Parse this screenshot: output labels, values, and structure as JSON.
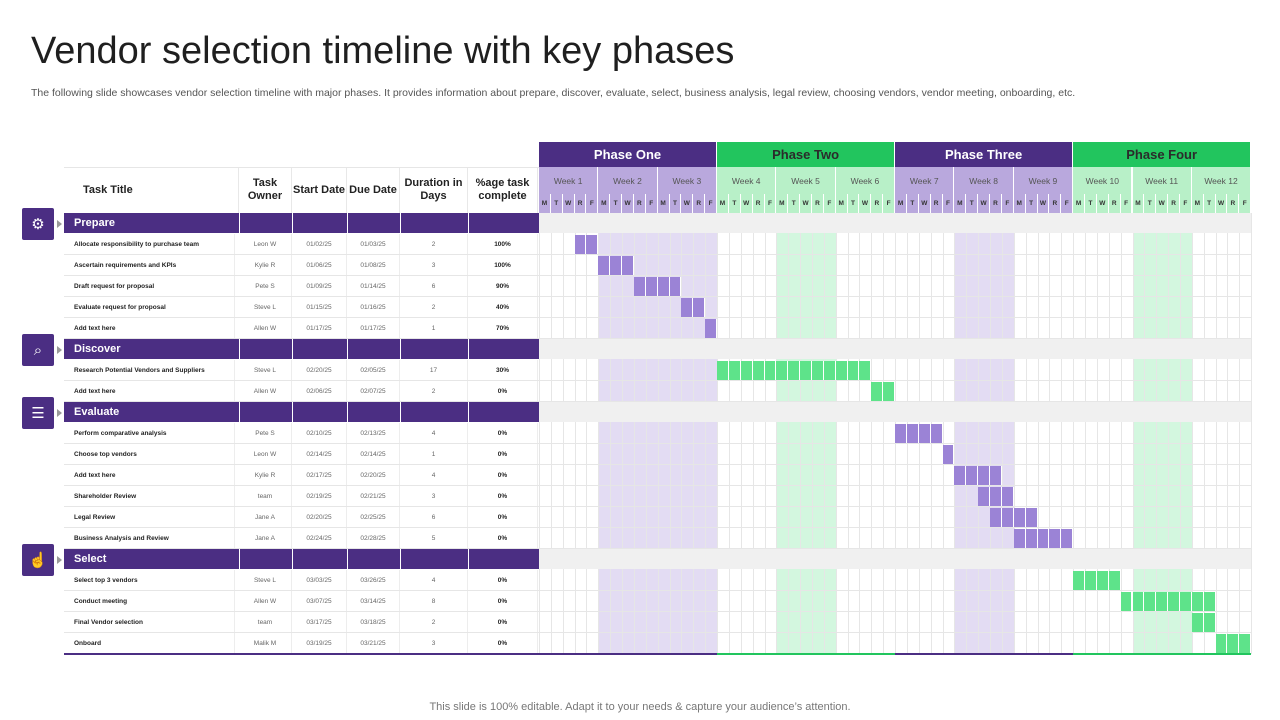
{
  "title": "Vendor selection timeline with key phases",
  "subtitle": "The following slide showcases vendor selection timeline with major phases. It provides information about prepare, discover, evaluate, select, business analysis, legal review, choosing vendors, vendor meeting, onboarding, etc.",
  "footer": "This slide is 100% editable. Adapt it to your needs & capture your audience’s attention.",
  "columns": {
    "task_title": "Task Title",
    "task_owner": "Task Owner",
    "start_date": "Start Date",
    "due_date": "Due Date",
    "duration": "Duration in Days",
    "complete": "%age task complete"
  },
  "phases": [
    {
      "label": "Phase One",
      "color": "#4b2e83",
      "text_color": "#ffffff",
      "week_bg": "#b9a8dd",
      "weeks": [
        "Week 1",
        "Week 2",
        "Week 3"
      ]
    },
    {
      "label": "Phase Two",
      "color": "#22c55e",
      "text_color": "#2b2b2b",
      "week_bg": "#b8f0c8",
      "weeks": [
        "Week 4",
        "Week 5",
        "Week 6"
      ]
    },
    {
      "label": "Phase Three",
      "color": "#4b2e83",
      "text_color": "#ffffff",
      "week_bg": "#b9a8dd",
      "weeks": [
        "Week 7",
        "Week 8",
        "Week 9"
      ]
    },
    {
      "label": "Phase Four",
      "color": "#22c55e",
      "text_color": "#2b2b2b",
      "week_bg": "#b8f0c8",
      "weeks": [
        "Week 10",
        "Week 11",
        "Week 12"
      ]
    }
  ],
  "days": [
    "M",
    "T",
    "W",
    "R",
    "F"
  ],
  "colors": {
    "purple": "#4b2e83",
    "bar_purple": "#9b83d6",
    "bar_green": "#5ee38a",
    "shade_purple": "#e3dcf3",
    "shade_green": "#d3f7df"
  },
  "sections": [
    {
      "label": "Prepare",
      "icon": "clipboard-gear-icon",
      "tasks": [
        {
          "task": "Allocate responsibility to purchase team",
          "owner": "Leon W",
          "start": "01/02/25",
          "due": "01/03/25",
          "duration": "2",
          "complete": "100%",
          "bar_start_day": 3,
          "bar_days": 2
        },
        {
          "task": "Ascertain requirements and KPIs",
          "owner": "Kylie R",
          "start": "01/06/25",
          "due": "01/08/25",
          "duration": "3",
          "complete": "100%",
          "bar_start_day": 5,
          "bar_days": 3
        },
        {
          "task": "Draft request for proposal",
          "owner": "Pete S",
          "start": "01/09/25",
          "due": "01/14/25",
          "duration": "6",
          "complete": "90%",
          "bar_start_day": 8,
          "bar_days": 4
        },
        {
          "task": "Evaluate request for proposal",
          "owner": "Steve L",
          "start": "01/15/25",
          "due": "01/16/25",
          "duration": "2",
          "complete": "40%",
          "bar_start_day": 12,
          "bar_days": 2
        },
        {
          "task": "Add text here",
          "owner": "Allen W",
          "start": "01/17/25",
          "due": "01/17/25",
          "duration": "1",
          "complete": "70%",
          "bar_start_day": 14,
          "bar_days": 1
        }
      ]
    },
    {
      "label": "Discover",
      "icon": "document-search-icon",
      "tasks": [
        {
          "task": "Research Potential Vendors and Suppliers",
          "owner": "Steve L",
          "start": "02/20/25",
          "due": "02/05/25",
          "duration": "17",
          "complete": "30%",
          "bar_start_day": 15,
          "bar_days": 13
        },
        {
          "task": "Add text here",
          "owner": "Allen W",
          "start": "02/06/25",
          "due": "02/07/25",
          "duration": "2",
          "complete": "0%",
          "bar_start_day": 28,
          "bar_days": 2
        }
      ]
    },
    {
      "label": "Evaluate",
      "icon": "checklist-icon",
      "tasks": [
        {
          "task": "Perform comparative analysis",
          "owner": "Pete S",
          "start": "02/10/25",
          "due": "02/13/25",
          "duration": "4",
          "complete": "0%",
          "bar_start_day": 30,
          "bar_days": 4
        },
        {
          "task": "Choose top vendors",
          "owner": "Leon W",
          "start": "02/14/25",
          "due": "02/14/25",
          "duration": "1",
          "complete": "0%",
          "bar_start_day": 34,
          "bar_days": 1
        },
        {
          "task": "Add text here",
          "owner": "Kylie R",
          "start": "02/17/25",
          "due": "02/20/25",
          "duration": "4",
          "complete": "0%",
          "bar_start_day": 35,
          "bar_days": 4
        },
        {
          "task": "Shareholder  Review",
          "owner": "team",
          "start": "02/19/25",
          "due": "02/21/25",
          "duration": "3",
          "complete": "0%",
          "bar_start_day": 37,
          "bar_days": 3
        },
        {
          "task": "Legal Review",
          "owner": "Jane A",
          "start": "02/20/25",
          "due": "02/25/25",
          "duration": "6",
          "complete": "0%",
          "bar_start_day": 38,
          "bar_days": 4
        },
        {
          "task": "Business Analysis and Review",
          "owner": "Jane A",
          "start": "02/24/25",
          "due": "02/28/25",
          "duration": "5",
          "complete": "0%",
          "bar_start_day": 40,
          "bar_days": 5
        }
      ]
    },
    {
      "label": "Select",
      "icon": "hand-pointer-icon",
      "tasks": [
        {
          "task": "Select top 3 vendors",
          "owner": "Steve L",
          "start": "03/03/25",
          "due": "03/26/25",
          "duration": "4",
          "complete": "0%",
          "bar_start_day": 45,
          "bar_days": 4
        },
        {
          "task": "Conduct meeting",
          "owner": "Allen W",
          "start": "03/07/25",
          "due": "03/14/25",
          "duration": "8",
          "complete": "0%",
          "bar_start_day": 49,
          "bar_days": 8
        },
        {
          "task": "Final Vendor selection",
          "owner": "team",
          "start": "03/17/25",
          "due": "03/18/25",
          "duration": "2",
          "complete": "0%",
          "bar_start_day": 55,
          "bar_days": 2
        },
        {
          "task": "Onboard",
          "owner": "Malik M",
          "start": "03/19/25",
          "due": "03/21/25",
          "duration": "3",
          "complete": "0%",
          "bar_start_day": 57,
          "bar_days": 3
        }
      ]
    }
  ]
}
